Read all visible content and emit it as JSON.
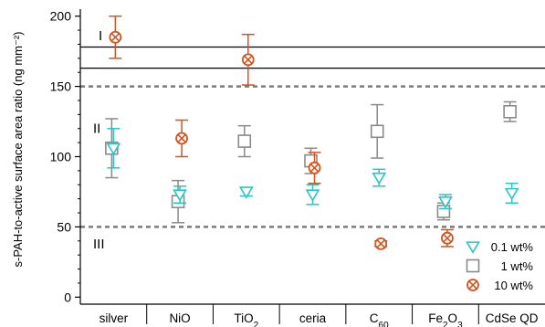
{
  "chart_data": {
    "type": "scatter",
    "ylabel": "s-PAH-to-active surface area ratio (ng mm⁻²)",
    "ylim": [
      -5,
      205
    ],
    "yticks": [
      0,
      50,
      100,
      150,
      200
    ],
    "categories": [
      {
        "base": "silver",
        "sub": ""
      },
      {
        "base": "NiO",
        "sub": ""
      },
      {
        "base": "TiO",
        "sub": "2"
      },
      {
        "base": "ceria",
        "sub": ""
      },
      {
        "base": "C",
        "sub": "60"
      },
      {
        "base": "Fe",
        "sub": "2",
        "base2": "O",
        "sub2": "3"
      },
      {
        "base": "CdSe QD",
        "sub": ""
      }
    ],
    "series": [
      {
        "name": "0.1 wt%",
        "marker": "triangle-down",
        "color": "#26c6c6",
        "points": [
          {
            "cat": 0,
            "y": 106,
            "err": 14
          },
          {
            "cat": 1,
            "y": 73,
            "err": 6
          },
          {
            "cat": 2,
            "y": 75,
            "err": 3
          },
          {
            "cat": 3,
            "y": 73,
            "err": 7
          },
          {
            "cat": 4,
            "y": 85,
            "err": 6
          },
          {
            "cat": 5,
            "y": 68,
            "err": 5
          },
          {
            "cat": 6,
            "y": 74,
            "err": 7
          }
        ]
      },
      {
        "name": "1 wt%",
        "marker": "square",
        "color": "#8a8a8a",
        "points": [
          {
            "cat": 0,
            "y": 106,
            "err": 21
          },
          {
            "cat": 1,
            "y": 68,
            "err": 15
          },
          {
            "cat": 2,
            "y": 111,
            "err": 11
          },
          {
            "cat": 3,
            "y": 97,
            "err": 9
          },
          {
            "cat": 4,
            "y": 118,
            "err": 19
          },
          {
            "cat": 5,
            "y": 61,
            "err": 6
          },
          {
            "cat": 6,
            "y": 132,
            "err": 7
          }
        ]
      },
      {
        "name": "10 wt%",
        "marker": "circle-x",
        "color": "#d2541f",
        "points": [
          {
            "cat": 0,
            "y": 185,
            "err": 15
          },
          {
            "cat": 1,
            "y": 113,
            "err": 13
          },
          {
            "cat": 2,
            "y": 169,
            "err": 18
          },
          {
            "cat": 3,
            "y": 92,
            "err": 11
          },
          {
            "cat": 4,
            "y": 38,
            "err": 2
          },
          {
            "cat": 5,
            "y": 42,
            "err": 6
          }
        ]
      }
    ],
    "solid_lines": [
      178,
      163
    ],
    "dashed_lines": [
      150,
      50
    ],
    "regions": [
      {
        "label": "I",
        "y": 186
      },
      {
        "label": "II",
        "y": 120
      },
      {
        "label": "III",
        "y": 38
      }
    ],
    "legend_position": "bottom-right",
    "grid": false
  }
}
